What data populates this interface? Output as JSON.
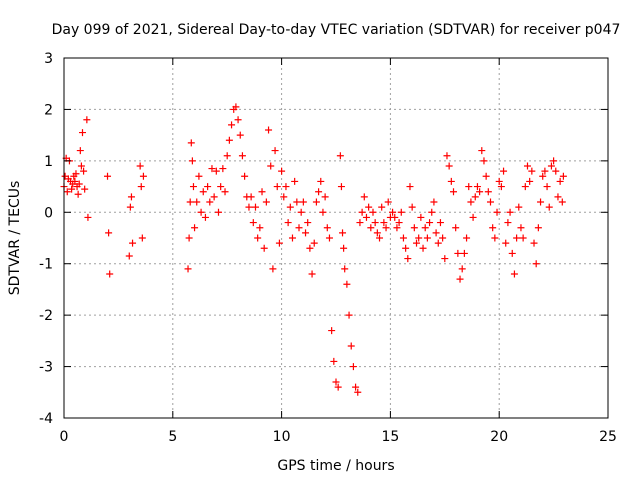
{
  "colors": {
    "background": "#ffffff",
    "axis": "#000000",
    "grid": "#a0a0a0",
    "series": "#ff0000"
  },
  "chart_data": {
    "type": "scatter",
    "title": "Day 099 of 2021, Sidereal Day-to-day VTEC variation (SDTVAR) for receiver p047",
    "xlabel": "GPS time / hours",
    "ylabel": "SDTVAR / TECUs",
    "xlim": [
      0,
      25
    ],
    "ylim": [
      -4,
      3
    ],
    "xticks": [
      0,
      5,
      10,
      15,
      20,
      25
    ],
    "yticks": [
      -4,
      -3,
      -2,
      -1,
      0,
      1,
      2,
      3
    ],
    "grid": true,
    "marker": "+",
    "series": [
      {
        "name": "SDTVAR",
        "points": [
          [
            0.0,
            0.5
          ],
          [
            0.05,
            0.7
          ],
          [
            0.1,
            1.05
          ],
          [
            0.15,
            0.4
          ],
          [
            0.2,
            0.65
          ],
          [
            0.25,
            1.0
          ],
          [
            0.3,
            0.6
          ],
          [
            0.35,
            0.45
          ],
          [
            0.4,
            0.55
          ],
          [
            0.45,
            0.7
          ],
          [
            0.5,
            0.6
          ],
          [
            0.55,
            0.75
          ],
          [
            0.6,
            0.5
          ],
          [
            0.65,
            0.35
          ],
          [
            0.7,
            0.55
          ],
          [
            0.75,
            1.2
          ],
          [
            0.8,
            0.9
          ],
          [
            0.85,
            1.55
          ],
          [
            0.9,
            0.8
          ],
          [
            0.95,
            0.45
          ],
          [
            1.05,
            1.8
          ],
          [
            1.1,
            -0.1
          ],
          [
            2.0,
            0.7
          ],
          [
            2.05,
            -0.4
          ],
          [
            2.1,
            -1.2
          ],
          [
            3.0,
            -0.85
          ],
          [
            3.05,
            0.1
          ],
          [
            3.1,
            0.3
          ],
          [
            3.15,
            -0.6
          ],
          [
            3.5,
            0.9
          ],
          [
            3.55,
            0.5
          ],
          [
            3.6,
            -0.5
          ],
          [
            3.65,
            0.7
          ],
          [
            5.7,
            -1.1
          ],
          [
            5.75,
            -0.5
          ],
          [
            5.8,
            0.2
          ],
          [
            5.85,
            1.35
          ],
          [
            5.9,
            1.0
          ],
          [
            5.95,
            0.5
          ],
          [
            6.0,
            -0.3
          ],
          [
            6.1,
            0.2
          ],
          [
            6.2,
            0.7
          ],
          [
            6.3,
            0.0
          ],
          [
            6.4,
            0.4
          ],
          [
            6.5,
            -0.1
          ],
          [
            6.6,
            0.5
          ],
          [
            6.7,
            0.2
          ],
          [
            6.8,
            0.85
          ],
          [
            6.9,
            0.3
          ],
          [
            7.0,
            0.8
          ],
          [
            7.1,
            0.0
          ],
          [
            7.2,
            0.5
          ],
          [
            7.3,
            0.85
          ],
          [
            7.4,
            0.4
          ],
          [
            7.5,
            1.1
          ],
          [
            7.6,
            1.4
          ],
          [
            7.7,
            1.7
          ],
          [
            7.8,
            2.0
          ],
          [
            7.9,
            2.05
          ],
          [
            8.0,
            1.8
          ],
          [
            8.1,
            1.5
          ],
          [
            8.2,
            1.1
          ],
          [
            8.3,
            0.7
          ],
          [
            8.4,
            0.3
          ],
          [
            8.5,
            0.1
          ],
          [
            8.6,
            0.3
          ],
          [
            8.7,
            -0.2
          ],
          [
            8.8,
            0.1
          ],
          [
            8.9,
            -0.5
          ],
          [
            9.0,
            -0.3
          ],
          [
            9.1,
            0.4
          ],
          [
            9.2,
            -0.7
          ],
          [
            9.3,
            0.2
          ],
          [
            9.4,
            1.6
          ],
          [
            9.5,
            0.9
          ],
          [
            9.6,
            -1.1
          ],
          [
            9.7,
            1.2
          ],
          [
            9.8,
            0.5
          ],
          [
            9.9,
            -0.6
          ],
          [
            10.0,
            0.8
          ],
          [
            10.1,
            0.3
          ],
          [
            10.2,
            0.5
          ],
          [
            10.3,
            -0.2
          ],
          [
            10.4,
            0.1
          ],
          [
            10.5,
            -0.5
          ],
          [
            10.6,
            0.6
          ],
          [
            10.7,
            0.2
          ],
          [
            10.8,
            -0.3
          ],
          [
            10.9,
            0.0
          ],
          [
            11.0,
            0.2
          ],
          [
            11.1,
            -0.4
          ],
          [
            11.2,
            -0.2
          ],
          [
            11.3,
            -0.7
          ],
          [
            11.4,
            -1.2
          ],
          [
            11.5,
            -0.6
          ],
          [
            11.6,
            0.2
          ],
          [
            11.7,
            0.4
          ],
          [
            11.8,
            0.6
          ],
          [
            11.9,
            0.0
          ],
          [
            12.0,
            0.3
          ],
          [
            12.1,
            -0.3
          ],
          [
            12.2,
            -0.5
          ],
          [
            12.3,
            -2.3
          ],
          [
            12.4,
            -2.9
          ],
          [
            12.5,
            -3.3
          ],
          [
            12.6,
            -3.4
          ],
          [
            12.7,
            1.1
          ],
          [
            12.75,
            0.5
          ],
          [
            12.8,
            -0.4
          ],
          [
            12.85,
            -0.7
          ],
          [
            12.9,
            -1.1
          ],
          [
            13.0,
            -1.4
          ],
          [
            13.1,
            -2.0
          ],
          [
            13.2,
            -2.6
          ],
          [
            13.3,
            -3.0
          ],
          [
            13.4,
            -3.4
          ],
          [
            13.5,
            -3.5
          ],
          [
            13.6,
            -0.2
          ],
          [
            13.7,
            0.0
          ],
          [
            13.8,
            0.3
          ],
          [
            13.9,
            -0.1
          ],
          [
            14.0,
            0.1
          ],
          [
            14.1,
            -0.3
          ],
          [
            14.2,
            0.0
          ],
          [
            14.3,
            -0.2
          ],
          [
            14.4,
            -0.4
          ],
          [
            14.5,
            -0.5
          ],
          [
            14.6,
            0.1
          ],
          [
            14.7,
            -0.2
          ],
          [
            14.8,
            -0.3
          ],
          [
            14.9,
            0.2
          ],
          [
            15.0,
            -0.1
          ],
          [
            15.1,
            0.0
          ],
          [
            15.2,
            -0.1
          ],
          [
            15.3,
            -0.3
          ],
          [
            15.4,
            -0.2
          ],
          [
            15.5,
            0.0
          ],
          [
            15.6,
            -0.5
          ],
          [
            15.7,
            -0.7
          ],
          [
            15.8,
            -0.9
          ],
          [
            15.9,
            0.5
          ],
          [
            16.0,
            0.1
          ],
          [
            16.1,
            -0.3
          ],
          [
            16.2,
            -0.6
          ],
          [
            16.3,
            -0.5
          ],
          [
            16.4,
            -0.1
          ],
          [
            16.5,
            -0.7
          ],
          [
            16.6,
            -0.3
          ],
          [
            16.7,
            -0.5
          ],
          [
            16.8,
            -0.2
          ],
          [
            16.9,
            0.0
          ],
          [
            17.0,
            0.2
          ],
          [
            17.1,
            -0.4
          ],
          [
            17.2,
            -0.6
          ],
          [
            17.3,
            -0.2
          ],
          [
            17.4,
            -0.5
          ],
          [
            17.5,
            -0.9
          ],
          [
            17.6,
            1.1
          ],
          [
            17.7,
            0.9
          ],
          [
            17.8,
            0.6
          ],
          [
            17.9,
            0.4
          ],
          [
            18.0,
            -0.3
          ],
          [
            18.1,
            -0.8
          ],
          [
            18.2,
            -1.3
          ],
          [
            18.3,
            -1.1
          ],
          [
            18.4,
            -0.8
          ],
          [
            18.5,
            -0.5
          ],
          [
            18.6,
            0.5
          ],
          [
            18.7,
            0.2
          ],
          [
            18.8,
            -0.1
          ],
          [
            18.9,
            0.3
          ],
          [
            19.0,
            0.5
          ],
          [
            19.1,
            0.4
          ],
          [
            19.2,
            1.2
          ],
          [
            19.3,
            1.0
          ],
          [
            19.4,
            0.7
          ],
          [
            19.5,
            0.4
          ],
          [
            19.6,
            0.2
          ],
          [
            19.7,
            -0.3
          ],
          [
            19.8,
            -0.5
          ],
          [
            19.9,
            0.0
          ],
          [
            20.0,
            0.6
          ],
          [
            20.1,
            0.5
          ],
          [
            20.2,
            0.8
          ],
          [
            20.3,
            -0.6
          ],
          [
            20.4,
            -0.2
          ],
          [
            20.5,
            0.0
          ],
          [
            20.6,
            -0.8
          ],
          [
            20.7,
            -1.2
          ],
          [
            20.8,
            -0.5
          ],
          [
            20.9,
            0.1
          ],
          [
            21.0,
            -0.3
          ],
          [
            21.1,
            -0.5
          ],
          [
            21.2,
            0.5
          ],
          [
            21.3,
            0.9
          ],
          [
            21.4,
            0.6
          ],
          [
            21.5,
            0.8
          ],
          [
            21.6,
            -0.6
          ],
          [
            21.7,
            -1.0
          ],
          [
            21.8,
            -0.3
          ],
          [
            21.9,
            0.2
          ],
          [
            22.0,
            0.7
          ],
          [
            22.1,
            0.8
          ],
          [
            22.2,
            0.5
          ],
          [
            22.3,
            0.1
          ],
          [
            22.4,
            0.9
          ],
          [
            22.5,
            1.0
          ],
          [
            22.6,
            0.8
          ],
          [
            22.7,
            0.3
          ],
          [
            22.8,
            0.6
          ],
          [
            22.9,
            0.2
          ],
          [
            22.95,
            0.7
          ]
        ]
      }
    ]
  }
}
